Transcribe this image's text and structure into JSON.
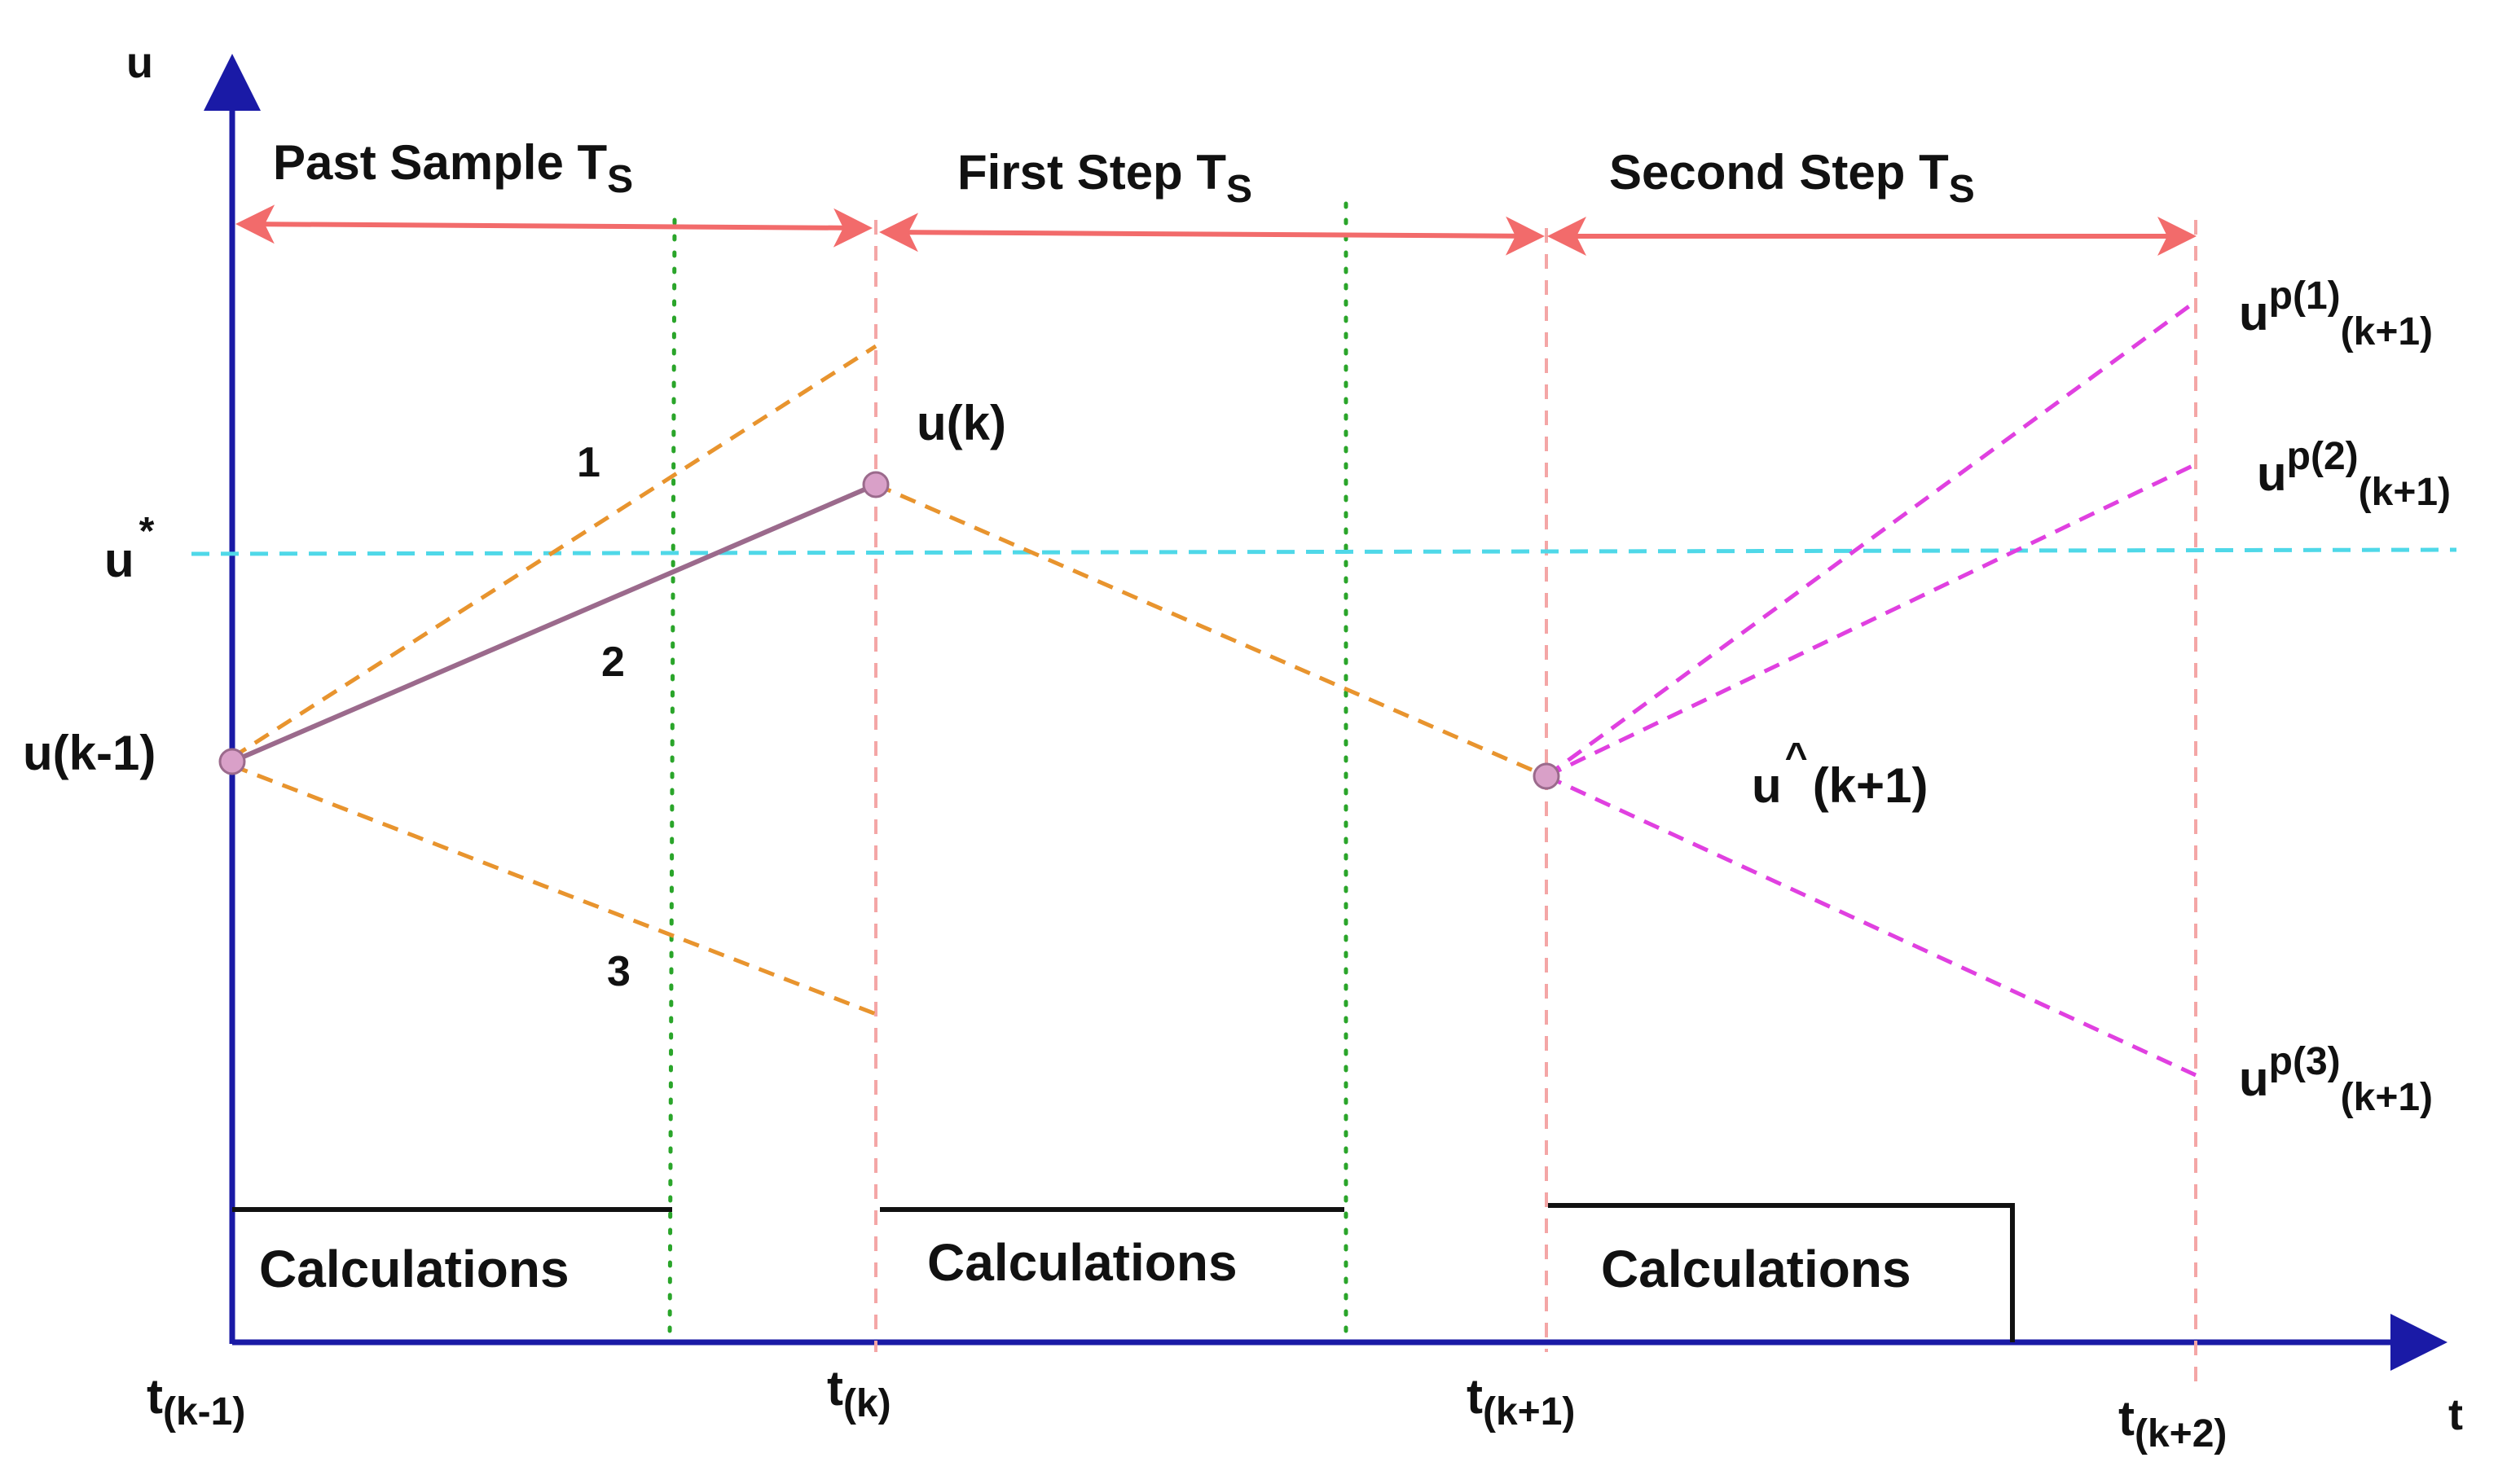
{
  "axes": {
    "y_label": "u",
    "x_label": "t"
  },
  "intervals": [
    {
      "label": "Past Sample T",
      "sub": "S"
    },
    {
      "label": "First Step T",
      "sub": "S"
    },
    {
      "label": "Second Step T",
      "sub": "S"
    }
  ],
  "time_ticks": [
    {
      "base": "t",
      "sub": "(k-1)"
    },
    {
      "base": "t",
      "sub": "(k)"
    },
    {
      "base": "t",
      "sub": "(k+1)"
    },
    {
      "base": "t",
      "sub": "(k+2)"
    }
  ],
  "points": {
    "u_k_minus_1": "u(k-1)",
    "u_k": "u(k)",
    "u_hat": {
      "base": "u",
      "sup": "^",
      "rest": "(k+1)"
    }
  },
  "reference": {
    "base": "u",
    "sup": "*"
  },
  "trajectory_numbers": [
    "1",
    "2",
    "3"
  ],
  "predictions": [
    {
      "base": "u",
      "sup": "p(1)",
      "sub": "(k+1)"
    },
    {
      "base": "u",
      "sup": "p(2)",
      "sub": "(k+1)"
    },
    {
      "base": "u",
      "sup": "p(3)",
      "sub": "(k+1)"
    }
  ],
  "calc_label": "Calculations",
  "colors": {
    "axis": "#1a1aa6",
    "interval_arrow": "#f26b6b",
    "boundary": "#f4a6a6",
    "midline": "#2aa52a",
    "reference": "#4fd8e8",
    "past_candidate": "#e8942e",
    "applied": "#9b6a8c",
    "prediction": "#e040e0",
    "point": "#d9a0c8"
  }
}
